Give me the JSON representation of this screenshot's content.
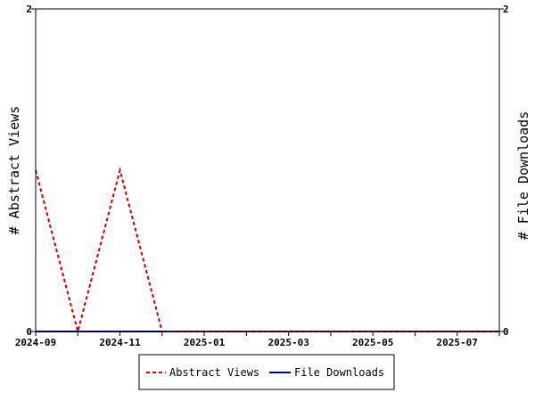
{
  "chart_data": {
    "type": "line",
    "title": "",
    "y_left_label": "# Abstract Views",
    "y_right_label": "# File Downloads",
    "x_range": [
      "2024-09",
      "2025-08"
    ],
    "x_tick_labels": [
      "2024-09",
      "2024-11",
      "2025-01",
      "2025-03",
      "2025-05",
      "2025-07"
    ],
    "y_left_range": [
      0,
      2
    ],
    "y_right_range": [
      0,
      2
    ],
    "y_left_ticks": [
      "0",
      "2"
    ],
    "y_right_ticks": [
      "0",
      "2"
    ],
    "grid": false,
    "legend_position": "bottom",
    "x": [
      "2024-09",
      "2024-10",
      "2024-11",
      "2024-12",
      "2025-01",
      "2025-02",
      "2025-03",
      "2025-04",
      "2025-05",
      "2025-06",
      "2025-07",
      "2025-08"
    ],
    "series": [
      {
        "name": "Abstract Views",
        "axis": "left",
        "color": "#cc0000",
        "style": "dashed",
        "values": [
          1,
          0,
          1,
          0,
          0,
          0,
          0,
          0,
          0,
          0,
          0,
          0
        ]
      },
      {
        "name": "File Downloads",
        "axis": "right",
        "color": "#000099",
        "style": "solid",
        "values": [
          0,
          0,
          0,
          0,
          0,
          0,
          0,
          0,
          0,
          0,
          0,
          0
        ]
      }
    ]
  }
}
